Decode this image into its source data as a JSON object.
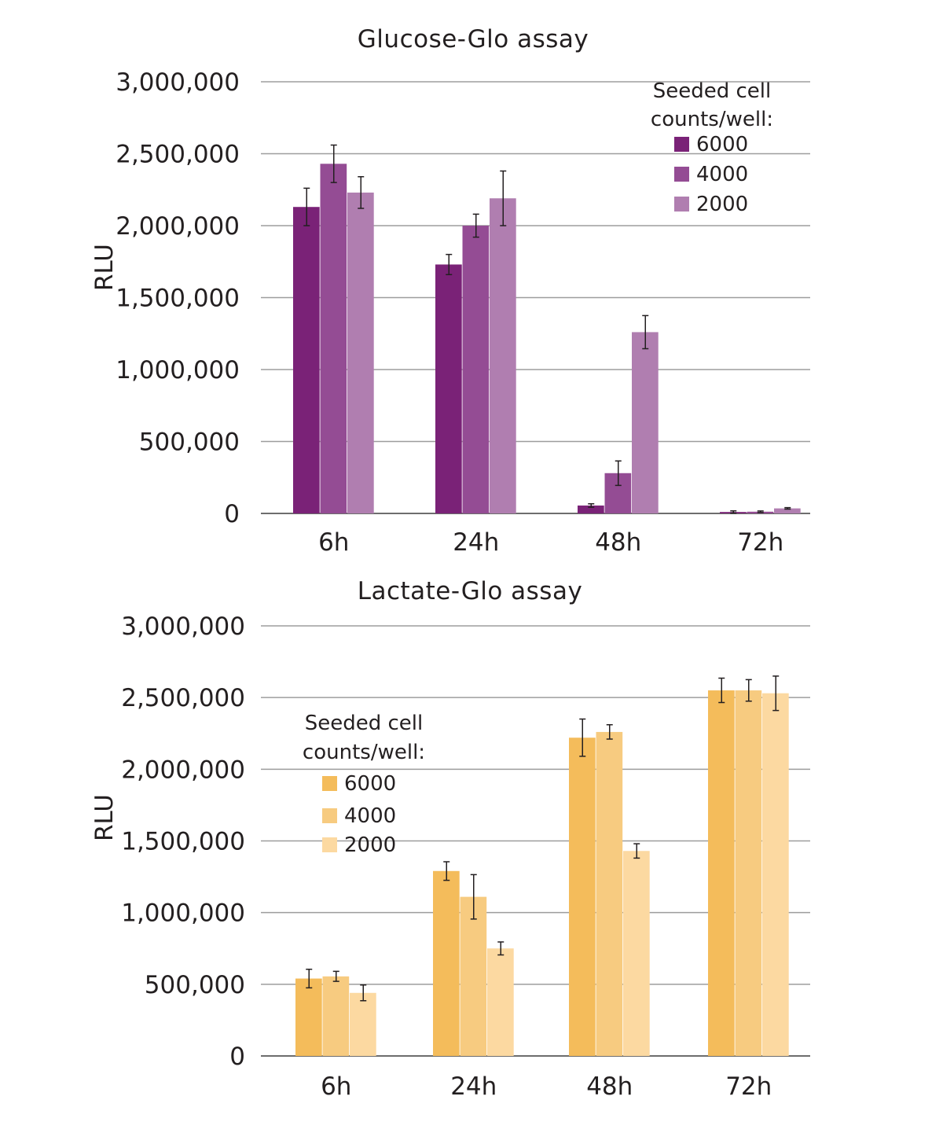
{
  "chart_data": [
    {
      "type": "bar",
      "title": "Glucose-Glo assay",
      "ylabel": "RLU",
      "xlabel": "",
      "ylim": [
        0,
        3000000
      ],
      "yticks": [
        0,
        500000,
        1000000,
        1500000,
        2000000,
        2500000,
        3000000
      ],
      "ytick_labels": [
        "0",
        "500,000",
        "1,000,000",
        "1,500,000",
        "2,000,000",
        "2,500,000",
        "3,000,000"
      ],
      "categories": [
        "6h",
        "24h",
        "48h",
        "72h"
      ],
      "grid": true,
      "legend": {
        "title_lines": [
          "Seeded cell",
          "counts/well:"
        ],
        "placement": "top-right"
      },
      "series": [
        {
          "name": "6000",
          "color": "#7a2277",
          "values": [
            2130000,
            1730000,
            55000,
            10000
          ],
          "errors": [
            130000,
            70000,
            12000,
            8000
          ]
        },
        {
          "name": "4000",
          "color": "#944c94",
          "values": [
            2430000,
            2000000,
            280000,
            12000
          ],
          "errors": [
            130000,
            80000,
            85000,
            5000
          ]
        },
        {
          "name": "2000",
          "color": "#b07eb0",
          "values": [
            2230000,
            2190000,
            1260000,
            35000
          ],
          "errors": [
            110000,
            190000,
            115000,
            5000
          ]
        }
      ]
    },
    {
      "type": "bar",
      "title": "Lactate-Glo assay",
      "ylabel": "RLU",
      "xlabel": "",
      "ylim": [
        0,
        3000000
      ],
      "yticks": [
        0,
        500000,
        1000000,
        1500000,
        2000000,
        2500000,
        3000000
      ],
      "ytick_labels": [
        "0",
        "500,000",
        "1,000,000",
        "1,500,000",
        "2,000,000",
        "2,500,000",
        "3,000,000"
      ],
      "categories": [
        "6h",
        "24h",
        "48h",
        "72h"
      ],
      "grid": true,
      "legend": {
        "title_lines": [
          "Seeded cell",
          "counts/well:"
        ],
        "placement": "top-left"
      },
      "series": [
        {
          "name": "6000",
          "color": "#f4bc5b",
          "values": [
            540000,
            1290000,
            2220000,
            2550000
          ],
          "errors": [
            65000,
            65000,
            130000,
            85000
          ]
        },
        {
          "name": "4000",
          "color": "#f7cb80",
          "values": [
            555000,
            1110000,
            2260000,
            2550000
          ],
          "errors": [
            35000,
            155000,
            50000,
            75000
          ]
        },
        {
          "name": "2000",
          "color": "#fcd9a1",
          "values": [
            440000,
            750000,
            1430000,
            2530000
          ],
          "errors": [
            55000,
            45000,
            50000,
            120000
          ]
        }
      ]
    }
  ]
}
